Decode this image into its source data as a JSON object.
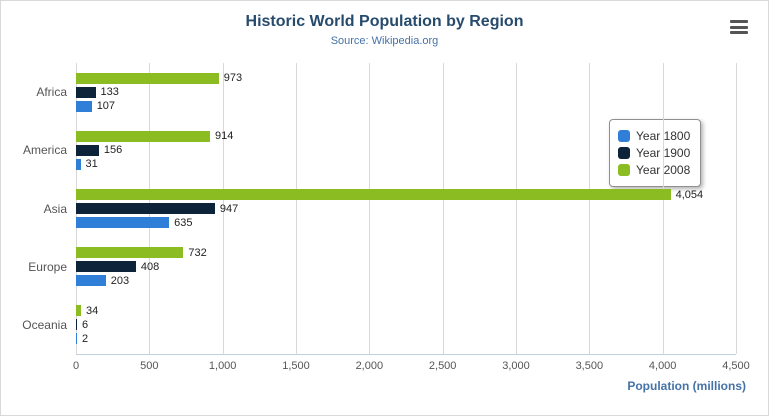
{
  "header": {
    "title": "Historic World Population by Region",
    "subtitle": "Source: Wikipedia.org"
  },
  "export_menu": {
    "icon": "hamburger-menu-icon"
  },
  "chart_data": {
    "type": "bar",
    "orientation": "horizontal",
    "title": "Historic World Population by Region",
    "subtitle": "Source: Wikipedia.org",
    "categories": [
      "Africa",
      "America",
      "Asia",
      "Europe",
      "Oceania"
    ],
    "series": [
      {
        "name": "Year 1800",
        "color": "#2f7ed8",
        "values": [
          107,
          31,
          635,
          203,
          2
        ]
      },
      {
        "name": "Year 1900",
        "color": "#0d233a",
        "values": [
          133,
          156,
          947,
          408,
          6
        ]
      },
      {
        "name": "Year 2008",
        "color": "#8bbc21",
        "values": [
          973,
          914,
          4054,
          732,
          34
        ]
      }
    ],
    "bar_draw_order_top_to_bottom": [
      "Year 2008",
      "Year 1900",
      "Year 1800"
    ],
    "xlabel": "Population (millions)",
    "ylabel": "",
    "xlim": [
      0,
      4500
    ],
    "x_tick_step": 500,
    "x_tick_labels": [
      "0",
      "500",
      "1,000",
      "1,500",
      "2,000",
      "2,500",
      "3,000",
      "3,500",
      "4,000",
      "4,500"
    ],
    "grid": true,
    "legend_position": "right",
    "data_labels": true
  }
}
